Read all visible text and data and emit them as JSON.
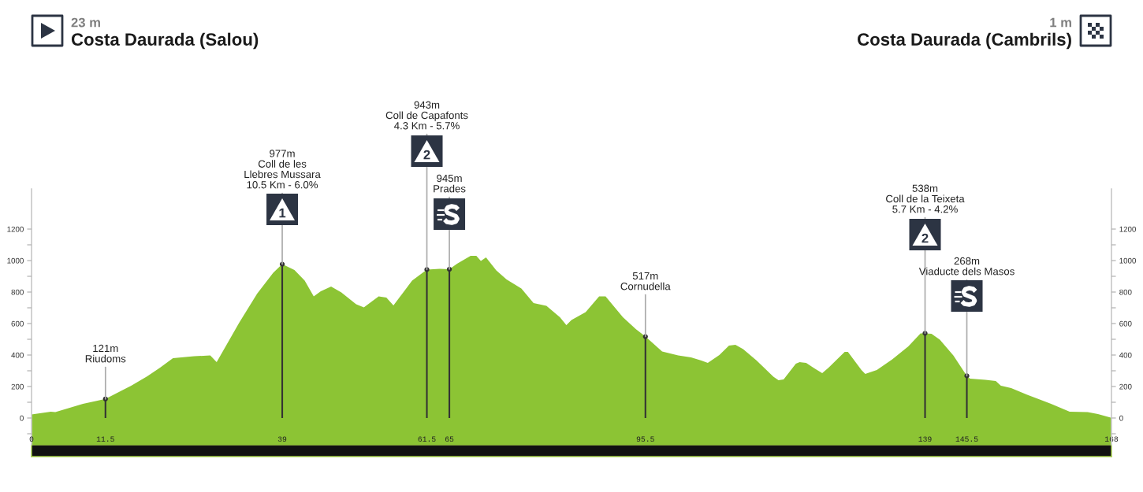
{
  "chart_data": {
    "type": "area",
    "series": [
      {
        "color": "#8cc434",
        "x": [
          0,
          3,
          3.7,
          8,
          11.5,
          14.3,
          15.5,
          18,
          20,
          22,
          25.3,
          27.8,
          28.8,
          32.3,
          35.1,
          37.6,
          39,
          40.9,
          42.5,
          43.9,
          45,
          46.6,
          48.2,
          50.5,
          51.7,
          54,
          55.2,
          56.3,
          59.2,
          61.5,
          63.5,
          65,
          66.2,
          68.3,
          69.2,
          69.9,
          70.7,
          72.3,
          73.9,
          75.2,
          76.2,
          78.1,
          80.1,
          82.2,
          83.2,
          84,
          86.2,
          88.3,
          89.3,
          92,
          94,
          95.5,
          98.1,
          100.6,
          102.6,
          104.2,
          105.2,
          107,
          108.5,
          109.5,
          110.7,
          112.8,
          115.4,
          116.2,
          117,
          118.9,
          119.5,
          120.5,
          121.8,
          123,
          124,
          126.5,
          127,
          129.1,
          129.7,
          131.5,
          133.9,
          136.4,
          138.3,
          139,
          140,
          141.3,
          143.4,
          145.5,
          146,
          148.4,
          150,
          150.8,
          152.4,
          154.9,
          157,
          158.6,
          161.5,
          164.3,
          165.9,
          168
        ],
        "values": [
          23,
          40,
          38,
          90,
          121,
          180,
          205,
          265,
          320,
          380,
          392,
          397,
          355,
          605,
          790,
          922,
          977,
          940,
          872,
          772,
          805,
          835,
          797,
          722,
          702,
          772,
          765,
          715,
          872,
          943,
          948,
          945,
          980,
          1030,
          1030,
          997,
          1020,
          938,
          880,
          847,
          822,
          730,
          713,
          640,
          590,
          622,
          672,
          772,
          772,
          640,
          565,
          517,
          422,
          397,
          385,
          365,
          350,
          400,
          460,
          465,
          438,
          365,
          263,
          240,
          245,
          345,
          355,
          350,
          315,
          285,
          320,
          420,
          420,
          305,
          280,
          305,
          372,
          455,
          538,
          538,
          535,
          497,
          397,
          268,
          250,
          243,
          235,
          205,
          190,
          147,
          115,
          90,
          40,
          38,
          25,
          1
        ]
      },
      {
        "type": "lollipop",
        "marker": "circle",
        "color": "#333333",
        "x": [
          11.5,
          39,
          61.5,
          65,
          95.5,
          139,
          145.5
        ],
        "values": [
          121,
          977,
          943,
          945,
          517,
          538,
          268
        ]
      }
    ],
    "xlim": [
      0,
      168
    ],
    "xticks": [
      0,
      11.5,
      39,
      61.5,
      65,
      95.5,
      139,
      145.5,
      168
    ],
    "ylim": [
      -170,
      1455
    ],
    "yticks": [
      {
        "value": -100,
        "label": null
      },
      0,
      {
        "value": 100,
        "label": null
      },
      200,
      {
        "value": 300,
        "label": null
      },
      400,
      {
        "value": 500,
        "label": null
      },
      600,
      {
        "value": 700,
        "label": null
      },
      800,
      {
        "value": 900,
        "label": null
      },
      1000,
      {
        "value": 1100,
        "label": null
      },
      1200
    ],
    "y2lim": [
      -170,
      1455
    ],
    "y2ticks": [
      {
        "value": -100,
        "label": null
      },
      0,
      {
        "value": 100,
        "label": null
      },
      200,
      {
        "value": 300,
        "label": null
      },
      400,
      {
        "value": 500,
        "label": null
      },
      600,
      {
        "value": 700,
        "label": null
      },
      800,
      {
        "value": 900,
        "label": null
      },
      1000,
      {
        "value": 1100,
        "label": null
      },
      1200
    ],
    "bands": [
      {
        "axis": "y",
        "from": -170,
        "to": 0,
        "color": "#8cc434"
      }
    ],
    "annotations": [
      "23 m",
      "Costa Daurada (Salou)",
      "1 m",
      "Costa Daurada (Cambrils)",
      {
        "text": "121m\nRiudoms",
        "x": 11.5,
        "y": 121
      },
      {
        "text": "977m\nColl de les\nLlebres Mussara\n10.5 Km - 6.0%",
        "x": 39,
        "y": 977
      },
      {
        "text": "1",
        "x": 39,
        "y": 977
      },
      {
        "text": "943m\nColl de Capafonts\n4.3 Km - 5.7%",
        "x": 61.5,
        "y": 943
      },
      {
        "text": "2",
        "x": 61.5,
        "y": 943
      },
      {
        "text": "945m\nPrades",
        "x": 65,
        "y": 945
      },
      {
        "text": "517m\nCornudella",
        "x": 95.5,
        "y": 517
      },
      {
        "text": "538m\nColl de la Teixeta\n5.7 Km - 4.2%",
        "x": 139,
        "y": 538
      },
      {
        "text": "2",
        "x": 139,
        "y": 538
      },
      {
        "text": "268m\nViaducte dels Masos",
        "x": 145.5,
        "y": 268
      }
    ]
  }
}
